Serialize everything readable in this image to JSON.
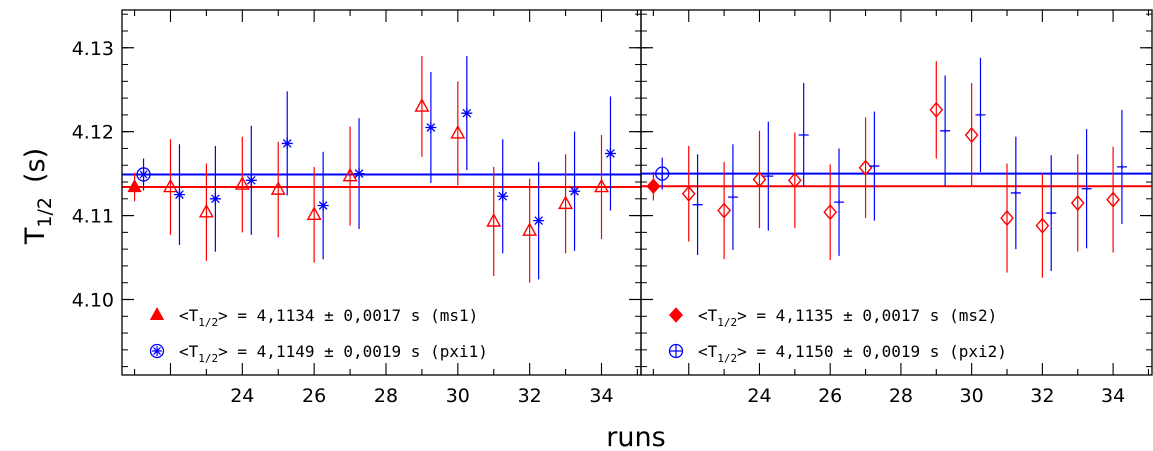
{
  "chart_data": {
    "type": "scatter",
    "ylabel": "T",
    "ylabel_sub": "1/2",
    "ylabel_unit": "(s)",
    "xlabel": "runs",
    "ylim": [
      4.091,
      4.1345
    ],
    "y_ticks": [
      "4.10",
      "4.11",
      "4.12",
      "4.13"
    ],
    "y_tick_values": [
      4.1,
      4.11,
      4.12,
      4.13
    ],
    "x_ticks": [
      "24",
      "26",
      "28",
      "30",
      "32",
      "34"
    ],
    "x_tick_values": [
      24,
      26,
      28,
      30,
      32,
      34
    ],
    "xlim": [
      20.65,
      35.1
    ],
    "grid": false,
    "colors": {
      "red": "#ff0000",
      "blue": "#0000ff",
      "axis": "#000000"
    },
    "panels": [
      {
        "legend_position": "bottom-left",
        "legend": [
          {
            "marker": "filled-triangle",
            "color": "#ff0000",
            "prefix": "<T",
            "sub": "1/2",
            "suffix": "> = 4,1134 ± 0,0017 s (ms1)"
          },
          {
            "marker": "circle-asterisk",
            "color": "#0000ff",
            "prefix": "<T",
            "sub": "1/2",
            "suffix": "> = 4,1149 ± 0,0019 s (pxi1)"
          }
        ],
        "mean_lines": [
          {
            "y": 4.1134,
            "color": "#ff0000"
          },
          {
            "y": 4.1149,
            "color": "#0000ff"
          }
        ],
        "series": [
          {
            "marker": "open-triangle",
            "color": "#ff0000",
            "x": [
              22,
              23,
              24,
              25,
              26,
              27,
              29,
              30,
              31,
              32,
              33,
              34
            ],
            "y": [
              4.1134,
              4.1104,
              4.1137,
              4.1131,
              4.1101,
              4.1147,
              4.123,
              4.1198,
              4.1093,
              4.1082,
              4.1114,
              4.1134
            ],
            "yerr": [
              0.0057,
              0.0058,
              0.0057,
              0.0057,
              0.0057,
              0.0059,
              0.006,
              0.0062,
              0.0065,
              0.0062,
              0.0059,
              0.0062
            ]
          },
          {
            "marker": "asterisk",
            "color": "#0000ff",
            "x": [
              22.25,
              23.25,
              24.25,
              25.25,
              26.25,
              27.25,
              29.25,
              30.25,
              31.25,
              32.25,
              33.25,
              34.25
            ],
            "y": [
              4.1125,
              4.112,
              4.1142,
              4.1186,
              4.1112,
              4.115,
              4.1205,
              4.1222,
              4.1123,
              4.1094,
              4.1129,
              4.1174
            ],
            "yerr": [
              0.006,
              0.0063,
              0.0065,
              0.0062,
              0.0064,
              0.0066,
              0.0066,
              0.0068,
              0.0068,
              0.007,
              0.0071,
              0.0068
            ]
          }
        ],
        "mean_markers": [
          {
            "marker": "filled-triangle",
            "color": "#ff0000",
            "x": 21.0,
            "y": 4.1134,
            "yerr": 0.0017
          },
          {
            "marker": "circle-asterisk",
            "color": "#0000ff",
            "x": 21.25,
            "y": 4.1149,
            "yerr": 0.0019
          }
        ]
      },
      {
        "legend_position": "bottom-left",
        "legend": [
          {
            "marker": "filled-diamond",
            "color": "#ff0000",
            "prefix": "<T",
            "sub": "1/2",
            "suffix": "> = 4,1135 ± 0,0017 s (ms2)"
          },
          {
            "marker": "circle-plus",
            "color": "#0000ff",
            "prefix": "<T",
            "sub": "1/2",
            "suffix": "> = 4,1150 ± 0,0019 s (pxi2)"
          }
        ],
        "mean_lines": [
          {
            "y": 4.1135,
            "color": "#ff0000"
          },
          {
            "y": 4.115,
            "color": "#0000ff"
          }
        ],
        "series": [
          {
            "marker": "open-diamond",
            "color": "#ff0000",
            "x": [
              22,
              23,
              24,
              25,
              26,
              27,
              29,
              30,
              31,
              32,
              33,
              34
            ],
            "y": [
              4.1126,
              4.1106,
              4.1143,
              4.1142,
              4.1104,
              4.1157,
              4.1226,
              4.1196,
              4.1097,
              4.1088,
              4.1115,
              4.1119
            ],
            "yerr": [
              0.0057,
              0.0058,
              0.0058,
              0.0057,
              0.0057,
              0.006,
              0.0058,
              0.0062,
              0.0065,
              0.0062,
              0.0058,
              0.0063
            ]
          },
          {
            "marker": "plus",
            "color": "#0000ff",
            "x": [
              22.25,
              23.25,
              24.25,
              25.25,
              26.25,
              27.25,
              29.25,
              30.25,
              31.25,
              32.25,
              33.25,
              34.25
            ],
            "y": [
              4.1113,
              4.1122,
              4.1147,
              4.1196,
              4.1116,
              4.1159,
              4.1201,
              4.122,
              4.1127,
              4.1103,
              4.1132,
              4.1158
            ],
            "yerr": [
              0.006,
              0.0063,
              0.0065,
              0.0062,
              0.0064,
              0.0065,
              0.0066,
              0.0068,
              0.0067,
              0.0069,
              0.0071,
              0.0068
            ]
          }
        ],
        "mean_markers": [
          {
            "marker": "filled-diamond",
            "color": "#ff0000",
            "x": 21.0,
            "y": 4.1135,
            "yerr": 0.0017
          },
          {
            "marker": "circle-plus",
            "color": "#0000ff",
            "x": 21.25,
            "y": 4.115,
            "yerr": 0.0019
          }
        ]
      }
    ]
  }
}
